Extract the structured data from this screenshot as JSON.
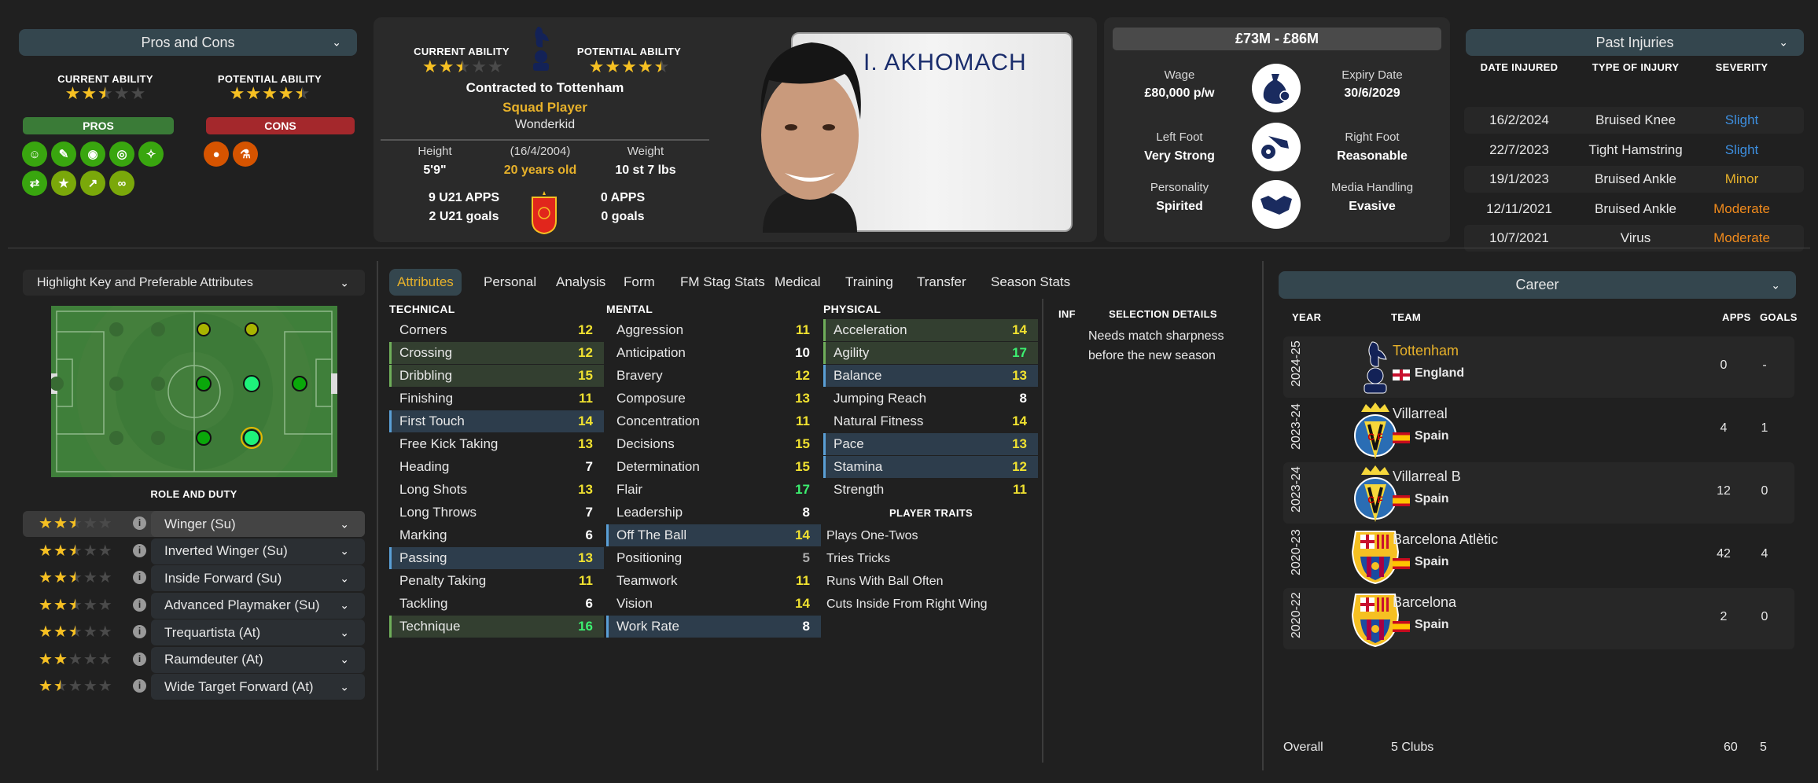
{
  "pros_cons": {
    "title": "Pros and Cons",
    "current_ability_label": "CURRENT ABILITY",
    "current_ability_stars": 2.5,
    "potential_ability_label": "POTENTIAL ABILITY",
    "potential_ability_stars": 4.5,
    "pros_label": "PROS",
    "cons_label": "CONS",
    "pros_icons": [
      "playmaker-icon",
      "training-icon",
      "mind-icon",
      "target-icon",
      "flare-icon",
      "arrows-icon",
      "star-icon",
      "trend-up-icon",
      "chain-icon"
    ],
    "cons_icons": [
      "ball-head-icon",
      "flask-icon"
    ],
    "colors": {
      "pros": "#3a7b37",
      "cons": "#a4282c",
      "pro_icon": "#39a60f",
      "pro_icon_alt": "#7aa80a",
      "con_icon": "#d65400"
    }
  },
  "profile": {
    "current_ability_label": "CURRENT ABILITY",
    "current_ability_stars": 2.5,
    "potential_ability_label": "POTENTIAL ABILITY",
    "potential_ability_stars": 4.5,
    "contract": "Contracted to Tottenham",
    "squad_status": "Squad Player",
    "tag": "Wonderkid",
    "height_label": "Height",
    "height": "5'9\"",
    "dob": "(16/4/2004)",
    "age": "20 years old",
    "weight_label": "Weight",
    "weight": "10 st 7 lbs",
    "u21_apps": "9 U21 APPS",
    "u21_goals": "2 U21 goals",
    "apps": "0 APPS",
    "goals": "0 goals",
    "shirt_name": "I. AKHOMACH"
  },
  "value": {
    "range": "£73M - £86M",
    "wage_label": "Wage",
    "wage": "£80,000 p/w",
    "expiry_label": "Expiry Date",
    "expiry": "30/6/2029",
    "left_foot_label": "Left Foot",
    "left_foot": "Very Strong",
    "right_foot_label": "Right Foot",
    "right_foot": "Reasonable",
    "personality_label": "Personality",
    "personality": "Spirited",
    "media_label": "Media Handling",
    "media": "Evasive"
  },
  "injuries": {
    "title": "Past Injuries",
    "columns": [
      "DATE INJURED",
      "TYPE OF INJURY",
      "SEVERITY"
    ],
    "rows": [
      {
        "date": "16/2/2024",
        "type": "Bruised Knee",
        "severity": "Slight",
        "color": "#3d8fe0"
      },
      {
        "date": "22/7/2023",
        "type": "Tight Hamstring",
        "severity": "Slight",
        "color": "#3d8fe0"
      },
      {
        "date": "19/1/2023",
        "type": "Bruised Ankle",
        "severity": "Minor",
        "color": "#e7b12a"
      },
      {
        "date": "12/11/2021",
        "type": "Bruised Ankle",
        "severity": "Moderate",
        "color": "#f08a1c"
      },
      {
        "date": "10/7/2021",
        "type": "Virus",
        "severity": "Moderate",
        "color": "#f08a1c"
      }
    ]
  },
  "highlight": {
    "dropdown": "Highlight Key and Preferable Attributes"
  },
  "roles": {
    "title": "ROLE AND DUTY",
    "items": [
      {
        "name": "Winger (Su)",
        "stars": 2.5,
        "selected": true
      },
      {
        "name": "Inverted Winger (Su)",
        "stars": 2.5
      },
      {
        "name": "Inside Forward (Su)",
        "stars": 2.5
      },
      {
        "name": "Advanced Playmaker (Su)",
        "stars": 2.5
      },
      {
        "name": "Trequartista (At)",
        "stars": 2.5
      },
      {
        "name": "Raumdeuter (At)",
        "stars": 2
      },
      {
        "name": "Wide Target Forward (At)",
        "stars": 1.5
      }
    ]
  },
  "tabs": [
    "Attributes",
    "Personal",
    "Analysis",
    "Form",
    "FM Stag Stats",
    "Medical",
    "Training",
    "Transfer",
    "Season Stats"
  ],
  "active_tab": "Attributes",
  "attributes": {
    "technical": {
      "title": "TECHNICAL",
      "items": [
        {
          "name": "Corners",
          "value": 12,
          "hl": ""
        },
        {
          "name": "Crossing",
          "value": 12,
          "hl": "key"
        },
        {
          "name": "Dribbling",
          "value": 15,
          "hl": "key"
        },
        {
          "name": "Finishing",
          "value": 11,
          "hl": ""
        },
        {
          "name": "First Touch",
          "value": 14,
          "hl": "pref"
        },
        {
          "name": "Free Kick Taking",
          "value": 13,
          "hl": ""
        },
        {
          "name": "Heading",
          "value": 7,
          "hl": ""
        },
        {
          "name": "Long Shots",
          "value": 13,
          "hl": ""
        },
        {
          "name": "Long Throws",
          "value": 7,
          "hl": ""
        },
        {
          "name": "Marking",
          "value": 6,
          "hl": ""
        },
        {
          "name": "Passing",
          "value": 13,
          "hl": "pref"
        },
        {
          "name": "Penalty Taking",
          "value": 11,
          "hl": ""
        },
        {
          "name": "Tackling",
          "value": 6,
          "hl": ""
        },
        {
          "name": "Technique",
          "value": 16,
          "hl": "key"
        }
      ]
    },
    "mental": {
      "title": "MENTAL",
      "items": [
        {
          "name": "Aggression",
          "value": 11,
          "hl": ""
        },
        {
          "name": "Anticipation",
          "value": 10,
          "hl": ""
        },
        {
          "name": "Bravery",
          "value": 12,
          "hl": ""
        },
        {
          "name": "Composure",
          "value": 13,
          "hl": ""
        },
        {
          "name": "Concentration",
          "value": 11,
          "hl": ""
        },
        {
          "name": "Decisions",
          "value": 15,
          "hl": ""
        },
        {
          "name": "Determination",
          "value": 15,
          "hl": ""
        },
        {
          "name": "Flair",
          "value": 17,
          "hl": ""
        },
        {
          "name": "Leadership",
          "value": 8,
          "hl": ""
        },
        {
          "name": "Off The Ball",
          "value": 14,
          "hl": "pref"
        },
        {
          "name": "Positioning",
          "value": 5,
          "hl": ""
        },
        {
          "name": "Teamwork",
          "value": 11,
          "hl": ""
        },
        {
          "name": "Vision",
          "value": 14,
          "hl": ""
        },
        {
          "name": "Work Rate",
          "value": 8,
          "hl": "pref"
        }
      ]
    },
    "physical": {
      "title": "PHYSICAL",
      "items": [
        {
          "name": "Acceleration",
          "value": 14,
          "hl": "key"
        },
        {
          "name": "Agility",
          "value": 17,
          "hl": "key"
        },
        {
          "name": "Balance",
          "value": 13,
          "hl": "pref"
        },
        {
          "name": "Jumping Reach",
          "value": 8,
          "hl": ""
        },
        {
          "name": "Natural Fitness",
          "value": 14,
          "hl": ""
        },
        {
          "name": "Pace",
          "value": 13,
          "hl": "pref"
        },
        {
          "name": "Stamina",
          "value": 12,
          "hl": "pref"
        },
        {
          "name": "Strength",
          "value": 11,
          "hl": ""
        }
      ]
    },
    "traits_title": "PLAYER TRAITS",
    "traits": [
      "Plays One-Twos",
      "Tries Tricks",
      "Runs With Ball Often",
      "Cuts Inside From Right Wing"
    ],
    "colors": {
      "key_bg": "#333f30",
      "key_edge": "#6fae5a",
      "pref_bg": "#2d3d4c",
      "pref_edge": "#5a9fd6",
      "good": "#f0e130",
      "great": "#3cf070"
    }
  },
  "selection": {
    "inf_label": "INF",
    "title": "SELECTION DETAILS",
    "text": "Needs match sharpness before the new season"
  },
  "career": {
    "title": "Career",
    "columns": {
      "year": "YEAR",
      "team": "TEAM",
      "apps": "APPS",
      "goals": "GOALS"
    },
    "rows": [
      {
        "year": "2024-25",
        "team": "Tottenham",
        "nation": "England",
        "apps": "0",
        "goals": "-",
        "crest": "tottenham",
        "current": true
      },
      {
        "year": "2023-24",
        "team": "Villarreal",
        "nation": "Spain",
        "apps": "4",
        "goals": "1",
        "crest": "villarreal"
      },
      {
        "year": "2023-24",
        "team": "Villarreal B",
        "nation": "Spain",
        "apps": "12",
        "goals": "0",
        "crest": "villarreal"
      },
      {
        "year": "2020-23",
        "team": "Barcelona Atlètic",
        "nation": "Spain",
        "apps": "42",
        "goals": "4",
        "crest": "barcelona"
      },
      {
        "year": "2020-22",
        "team": "Barcelona",
        "nation": "Spain",
        "apps": "2",
        "goals": "0",
        "crest": "barcelona"
      }
    ],
    "overall_label": "Overall",
    "overall_clubs": "5 Clubs",
    "overall_apps": "60",
    "overall_goals": "5"
  }
}
